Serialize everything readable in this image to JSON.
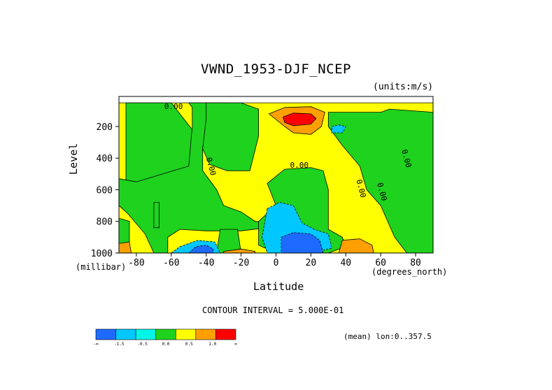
{
  "chart_data": {
    "type": "heatmap",
    "title": "VWND_1953-DJF_NCEP",
    "units_note": "(units:m/s)",
    "xlabel": "Latitude",
    "x_unit": "(degrees_north)",
    "ylabel": "Level",
    "y_unit": "(millibar)",
    "xlim": [
      -90,
      90
    ],
    "ylim": [
      1000,
      10
    ],
    "y_reversed": true,
    "x_ticks": [
      "-80",
      "-60",
      "-40",
      "-20",
      "0",
      "20",
      "40",
      "60",
      "80"
    ],
    "y_ticks": [
      "200",
      "400",
      "600",
      "800",
      "1000"
    ],
    "contour_interval_text": "CONTOUR INTERVAL = 5.000E-01",
    "contour_labels": [
      "0.00",
      "0.00",
      "0.00",
      "0.00",
      "0.00",
      "0.00"
    ],
    "mean_text": "(mean) lon:0..357.5",
    "colorbar": {
      "colors": [
        "#1e6aff",
        "#00c8ff",
        "#00f5e6",
        "#1ed21e",
        "#ffff00",
        "#ffa000",
        "#ff0000"
      ],
      "labels": [
        "-∞",
        "-1.5",
        "-0.5",
        "0.0",
        "0.5",
        "1.0",
        "∞"
      ]
    },
    "regions": [
      {
        "value": 0.2,
        "polygon": [
          [
            -90,
            50
          ],
          [
            90,
            50
          ],
          [
            90,
            1000
          ],
          [
            -90,
            1000
          ]
        ]
      },
      {
        "value": -0.2,
        "polygon": [
          [
            -86,
            50
          ],
          [
            -60,
            50
          ],
          [
            -48,
            220
          ],
          [
            -48,
            450
          ],
          [
            -62,
            500
          ],
          [
            -75,
            570
          ],
          [
            -86,
            540
          ]
        ]
      },
      {
        "value": -0.2,
        "polygon": [
          [
            -50,
            50
          ],
          [
            -30,
            50
          ],
          [
            -20,
            55
          ],
          [
            -35,
            130
          ],
          [
            -42,
            330
          ],
          [
            -42,
            480
          ],
          [
            -34,
            600
          ],
          [
            -30,
            700
          ],
          [
            -20,
            740
          ],
          [
            -12,
            800
          ],
          [
            -5,
            810
          ],
          [
            -5,
            840
          ],
          [
            -20,
            860
          ],
          [
            -40,
            860
          ],
          [
            -55,
            850
          ],
          [
            -62,
            900
          ],
          [
            -62,
            1000
          ],
          [
            -70,
            1000
          ],
          [
            -75,
            880
          ],
          [
            -85,
            750
          ],
          [
            -90,
            700
          ],
          [
            -90,
            530
          ],
          [
            -80,
            550
          ],
          [
            -65,
            500
          ],
          [
            -50,
            450
          ],
          [
            -48,
            200
          ],
          [
            -48,
            80
          ]
        ]
      },
      {
        "value": -0.2,
        "polygon": [
          [
            -40,
            50
          ],
          [
            -20,
            50
          ],
          [
            -10,
            90
          ],
          [
            -10,
            260
          ],
          [
            -15,
            480
          ],
          [
            -28,
            480
          ],
          [
            -38,
            440
          ],
          [
            -42,
            340
          ],
          [
            -40,
            150
          ]
        ]
      },
      {
        "value": -0.2,
        "polygon": [
          [
            0,
            700
          ],
          [
            -5,
            560
          ],
          [
            5,
            470
          ],
          [
            20,
            460
          ],
          [
            27,
            480
          ],
          [
            30,
            600
          ],
          [
            30,
            850
          ],
          [
            38,
            900
          ],
          [
            40,
            960
          ],
          [
            30,
            1000
          ],
          [
            0,
            1000
          ],
          [
            -10,
            950
          ],
          [
            -10,
            800
          ]
        ]
      },
      {
        "value": -0.2,
        "polygon": [
          [
            30,
            110
          ],
          [
            60,
            110
          ],
          [
            65,
            90
          ],
          [
            90,
            110
          ],
          [
            90,
            1000
          ],
          [
            75,
            1000
          ],
          [
            68,
            900
          ],
          [
            60,
            700
          ],
          [
            52,
            600
          ],
          [
            48,
            450
          ],
          [
            38,
            320
          ],
          [
            30,
            200
          ]
        ]
      },
      {
        "value": -0.2,
        "polygon": [
          [
            -90,
            780
          ],
          [
            -84,
            800
          ],
          [
            -84,
            1000
          ],
          [
            -90,
            1000
          ]
        ]
      },
      {
        "value": -0.2,
        "polygon": [
          [
            -70,
            680
          ],
          [
            -67,
            680
          ],
          [
            -67,
            840
          ],
          [
            -70,
            840
          ]
        ]
      },
      {
        "value": -0.2,
        "polygon": [
          [
            -32,
            850
          ],
          [
            -22,
            850
          ],
          [
            -20,
            1000
          ],
          [
            -34,
            1000
          ]
        ]
      },
      {
        "value": -0.6,
        "polygon": [
          [
            -5,
            720
          ],
          [
            2,
            680
          ],
          [
            10,
            700
          ],
          [
            15,
            810
          ],
          [
            22,
            850
          ],
          [
            30,
            880
          ],
          [
            32,
            970
          ],
          [
            20,
            1000
          ],
          [
            -5,
            1000
          ],
          [
            -8,
            900
          ]
        ]
      },
      {
        "value": -0.6,
        "polygon": [
          [
            -60,
            1000
          ],
          [
            -55,
            960
          ],
          [
            -45,
            920
          ],
          [
            -35,
            930
          ],
          [
            -32,
            1000
          ]
        ]
      },
      {
        "value": -0.6,
        "polygon": [
          [
            32,
            200
          ],
          [
            36,
            190
          ],
          [
            40,
            200
          ],
          [
            38,
            240
          ],
          [
            32,
            240
          ]
        ]
      },
      {
        "value": -1.6,
        "polygon": [
          [
            3,
            900
          ],
          [
            10,
            870
          ],
          [
            20,
            880
          ],
          [
            25,
            920
          ],
          [
            27,
            1000
          ],
          [
            3,
            1000
          ]
        ]
      },
      {
        "value": -1.6,
        "polygon": [
          [
            -50,
            1000
          ],
          [
            -46,
            960
          ],
          [
            -40,
            950
          ],
          [
            -36,
            975
          ],
          [
            -36,
            1000
          ]
        ]
      },
      {
        "value": 0.6,
        "polygon": [
          [
            -4,
            120
          ],
          [
            5,
            80
          ],
          [
            20,
            75
          ],
          [
            28,
            110
          ],
          [
            26,
            200
          ],
          [
            20,
            250
          ],
          [
            10,
            240
          ],
          [
            5,
            200
          ]
        ]
      },
      {
        "value": 0.6,
        "polygon": [
          [
            36,
            1000
          ],
          [
            38,
            920
          ],
          [
            48,
            910
          ],
          [
            55,
            950
          ],
          [
            56,
            1000
          ]
        ]
      },
      {
        "value": 0.6,
        "polygon": [
          [
            -90,
            940
          ],
          [
            -84,
            930
          ],
          [
            -83,
            1000
          ],
          [
            -90,
            1000
          ]
        ]
      },
      {
        "value": 0.6,
        "polygon": [
          [
            -30,
            990
          ],
          [
            -20,
            975
          ],
          [
            -12,
            990
          ],
          [
            -12,
            1000
          ],
          [
            -30,
            1000
          ]
        ]
      },
      {
        "value": 1.6,
        "polygon": [
          [
            4,
            140
          ],
          [
            10,
            115
          ],
          [
            20,
            120
          ],
          [
            23,
            150
          ],
          [
            20,
            185
          ],
          [
            10,
            195
          ],
          [
            5,
            175
          ]
        ]
      }
    ]
  }
}
